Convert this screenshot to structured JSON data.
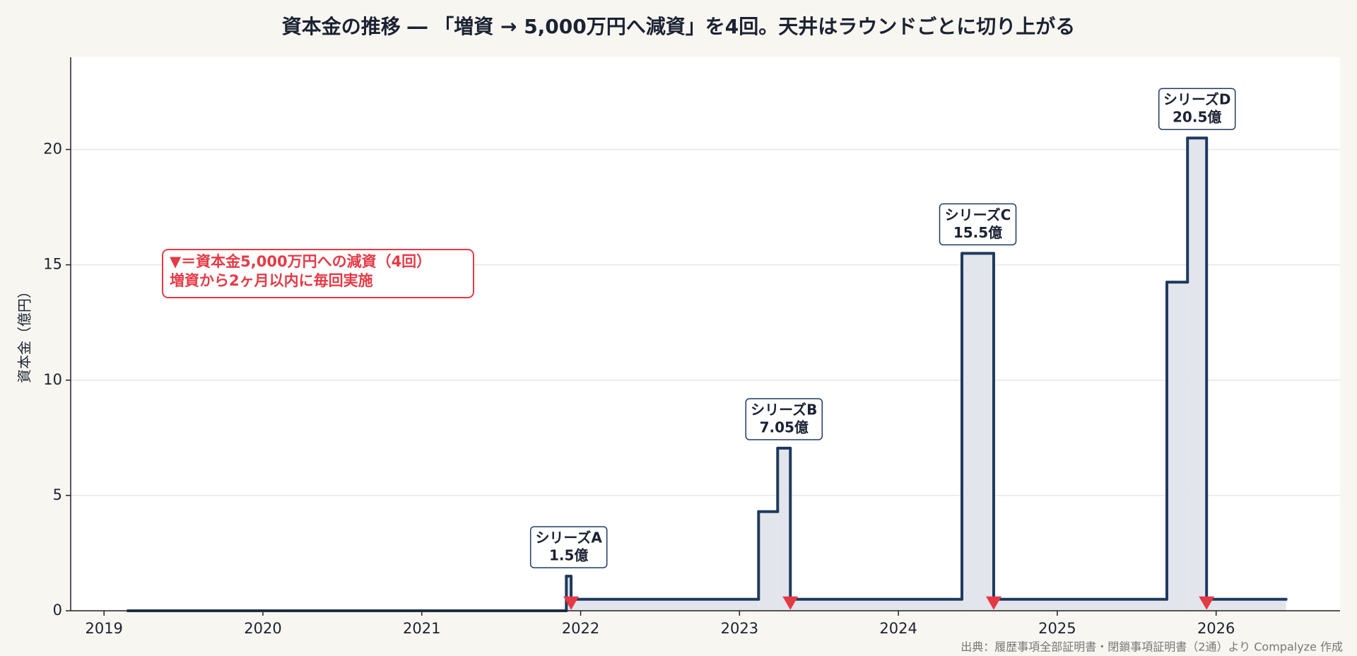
{
  "chart_data": {
    "type": "step",
    "title": "資本金の推移 ― 「増資 → 5,000万円へ減資」を4回。天井はラウンドごとに切り上がる",
    "y_label": "資本金（億円）",
    "source": "出典：履歴事項全部証明書・閉鎖事項証明書（2通）より Compalyze 作成",
    "x": [
      2019.15,
      2021.91,
      2021.94,
      2023.12,
      2023.24,
      2023.32,
      2024.4,
      2024.6,
      2025.69,
      2025.82,
      2025.94,
      2026.44
    ],
    "values": [
      0,
      1.5,
      0.5,
      4.3,
      7.05,
      0.5,
      15.5,
      0.5,
      14.25,
      20.5,
      0.5,
      0.5
    ],
    "line_color": "#1f3a5f",
    "fill_color": "#e2e5eb",
    "markers": {
      "x": [
        2021.94,
        2023.32,
        2024.6,
        2025.94
      ],
      "values": [
        0.5,
        0.5,
        0.5,
        0.5
      ],
      "color": "#e63946"
    },
    "annotations": [
      {
        "lines": [
          "シリーズA",
          "1.5億"
        ],
        "x": 2021.925,
        "y": 1.5
      },
      {
        "lines": [
          "シリーズB",
          "7.05億"
        ],
        "x": 2023.28,
        "y": 7.05
      },
      {
        "lines": [
          "シリーズC",
          "15.5億"
        ],
        "x": 2024.5,
        "y": 15.5
      },
      {
        "lines": [
          "シリーズD",
          "20.5億"
        ],
        "x": 2025.88,
        "y": 20.5
      }
    ],
    "note": {
      "lines": [
        "▼＝資本金5,000万円への減資（4回）",
        "増資から2ヶ月以内に毎回実施"
      ],
      "color": "#e63946"
    },
    "xlim": [
      2018.79,
      2026.78
    ],
    "xticks": [
      2019,
      2020,
      2021,
      2022,
      2023,
      2024,
      2025,
      2026
    ],
    "ylim": [
      0,
      24
    ],
    "yticks": [
      0,
      5,
      10,
      15,
      20
    ],
    "grid": true
  }
}
